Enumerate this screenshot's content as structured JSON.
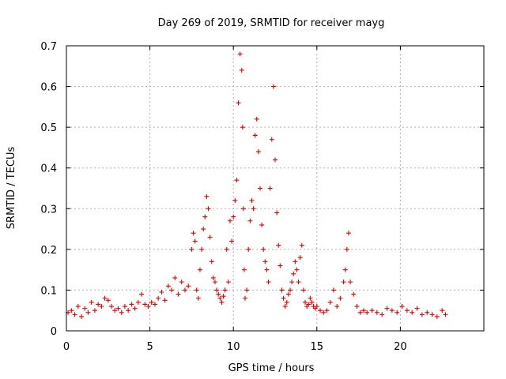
{
  "chart_data": {
    "type": "scatter",
    "title": "Day 269 of 2019, SRMTID for receiver mayg",
    "xlabel": "GPS time / hours",
    "ylabel": "SRMTID / TECUs",
    "xlim": [
      0,
      25
    ],
    "ylim": [
      0,
      0.7
    ],
    "xticks": [
      0,
      5,
      10,
      15,
      20
    ],
    "yticks": [
      0,
      0.1,
      0.2,
      0.3,
      0.4,
      0.5,
      0.6,
      0.7
    ],
    "xtick_labels": [
      "0",
      "5",
      "10",
      "15",
      "20"
    ],
    "ytick_labels": [
      "0",
      "0.1",
      "0.2",
      "0.3",
      "0.4",
      "0.5",
      "0.6",
      "0.7"
    ],
    "grid": true,
    "marker": "+",
    "color": "#e00000",
    "series": [
      {
        "name": "SRMTID",
        "x": [
          0.1,
          0.3,
          0.5,
          0.7,
          0.9,
          1.1,
          1.3,
          1.5,
          1.7,
          1.9,
          2.1,
          2.3,
          2.5,
          2.7,
          2.9,
          3.1,
          3.3,
          3.5,
          3.7,
          3.9,
          4.1,
          4.3,
          4.5,
          4.7,
          4.9,
          5.1,
          5.3,
          5.5,
          5.7,
          5.9,
          6.1,
          6.3,
          6.5,
          6.7,
          6.9,
          7.1,
          7.3,
          7.5,
          7.6,
          7.7,
          7.8,
          7.9,
          8.0,
          8.1,
          8.2,
          8.3,
          8.4,
          8.5,
          8.6,
          8.7,
          8.8,
          8.9,
          9.0,
          9.1,
          9.2,
          9.3,
          9.4,
          9.5,
          9.6,
          9.7,
          9.8,
          9.9,
          10.0,
          10.1,
          10.2,
          10.3,
          10.4,
          10.5,
          10.55,
          10.6,
          10.65,
          10.7,
          10.8,
          10.9,
          11.0,
          11.1,
          11.2,
          11.3,
          11.4,
          11.5,
          11.6,
          11.7,
          11.8,
          11.9,
          12.0,
          12.1,
          12.2,
          12.3,
          12.4,
          12.5,
          12.6,
          12.7,
          12.8,
          12.9,
          13.0,
          13.1,
          13.2,
          13.3,
          13.4,
          13.5,
          13.6,
          13.7,
          13.8,
          13.9,
          14.0,
          14.1,
          14.2,
          14.3,
          14.4,
          14.5,
          14.6,
          14.7,
          14.8,
          14.9,
          15.0,
          15.2,
          15.4,
          15.6,
          15.8,
          16.0,
          16.2,
          16.4,
          16.6,
          16.7,
          16.8,
          16.9,
          17.0,
          17.2,
          17.4,
          17.6,
          17.8,
          18.0,
          18.3,
          18.6,
          18.9,
          19.2,
          19.5,
          19.8,
          20.1,
          20.4,
          20.7,
          21.0,
          21.3,
          21.6,
          21.9,
          22.2,
          22.5,
          22.7
        ],
        "values": [
          0.045,
          0.05,
          0.04,
          0.06,
          0.035,
          0.055,
          0.045,
          0.07,
          0.05,
          0.065,
          0.06,
          0.08,
          0.075,
          0.06,
          0.05,
          0.055,
          0.045,
          0.06,
          0.05,
          0.065,
          0.055,
          0.07,
          0.09,
          0.065,
          0.06,
          0.07,
          0.065,
          0.08,
          0.095,
          0.075,
          0.11,
          0.1,
          0.13,
          0.09,
          0.12,
          0.1,
          0.11,
          0.2,
          0.24,
          0.22,
          0.1,
          0.08,
          0.15,
          0.2,
          0.25,
          0.28,
          0.33,
          0.3,
          0.23,
          0.17,
          0.13,
          0.12,
          0.1,
          0.09,
          0.08,
          0.07,
          0.085,
          0.1,
          0.2,
          0.12,
          0.27,
          0.22,
          0.28,
          0.32,
          0.37,
          0.56,
          0.68,
          0.64,
          0.5,
          0.3,
          0.15,
          0.08,
          0.1,
          0.2,
          0.27,
          0.32,
          0.3,
          0.48,
          0.52,
          0.44,
          0.35,
          0.26,
          0.2,
          0.17,
          0.15,
          0.12,
          0.35,
          0.47,
          0.6,
          0.42,
          0.29,
          0.21,
          0.16,
          0.1,
          0.08,
          0.06,
          0.07,
          0.09,
          0.1,
          0.12,
          0.14,
          0.17,
          0.15,
          0.12,
          0.18,
          0.21,
          0.1,
          0.07,
          0.06,
          0.065,
          0.08,
          0.07,
          0.06,
          0.055,
          0.06,
          0.05,
          0.045,
          0.05,
          0.07,
          0.1,
          0.06,
          0.08,
          0.12,
          0.15,
          0.2,
          0.24,
          0.12,
          0.09,
          0.06,
          0.045,
          0.05,
          0.045,
          0.05,
          0.045,
          0.04,
          0.055,
          0.05,
          0.045,
          0.06,
          0.05,
          0.045,
          0.055,
          0.04,
          0.045,
          0.04,
          0.035,
          0.05,
          0.04
        ]
      }
    ]
  }
}
